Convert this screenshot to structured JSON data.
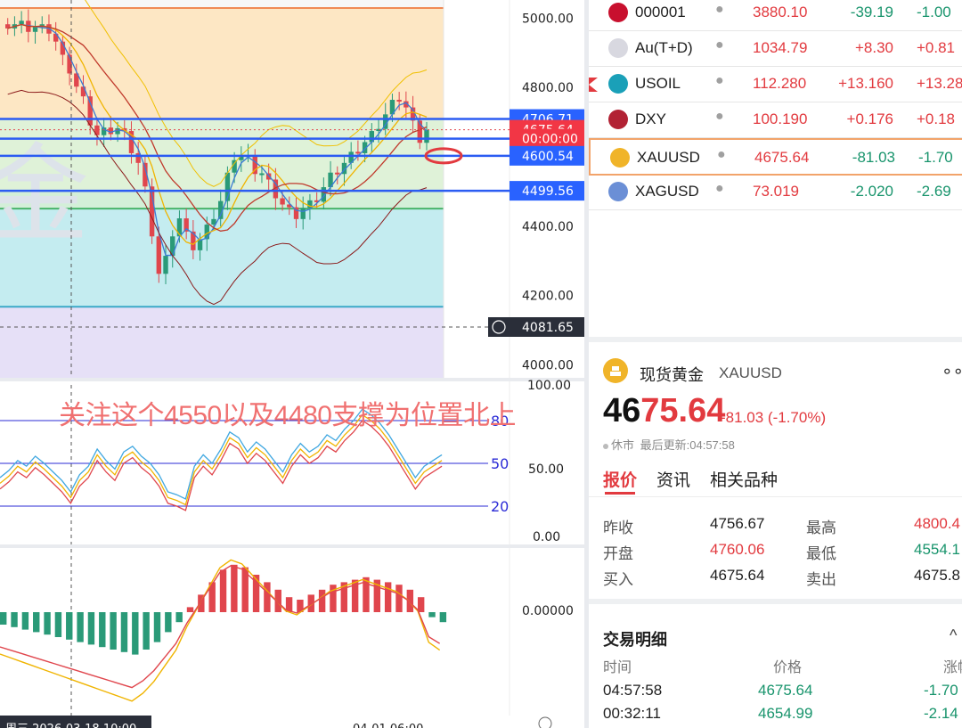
{
  "watchlist": [
    {
      "symbol": "000001",
      "price": "3880.10",
      "change": "-39.19",
      "pct": "-1.00",
      "dir": "down",
      "icon": "sse-logo-icon",
      "color": "#c8102e"
    },
    {
      "symbol": "Au(T+D)",
      "price": "1034.79",
      "change": "+8.30",
      "pct": "+0.81",
      "dir": "up",
      "icon": "letter-a-icon",
      "color": "#d8d8e0"
    },
    {
      "symbol": "USOIL",
      "price": "112.280",
      "change": "+13.160",
      "pct": "+13.28",
      "dir": "up",
      "icon": "oil-drop-icon",
      "color": "#1aa0b8"
    },
    {
      "symbol": "DXY",
      "price": "100.190",
      "change": "+0.176",
      "pct": "+0.18",
      "dir": "up",
      "icon": "us-flag-icon",
      "color": "#b22234"
    },
    {
      "symbol": "XAUUSD",
      "price": "4675.64",
      "change": "-81.03",
      "pct": "-1.70",
      "dir": "down",
      "icon": "gold-bars-icon",
      "color": "#f0b429"
    },
    {
      "symbol": "XAGUSD",
      "price": "73.019",
      "change": "-2.020",
      "pct": "-2.69",
      "dir": "down",
      "icon": "silver-bars-icon",
      "color": "#6b8fd6"
    }
  ],
  "detail": {
    "name": "现货黄金",
    "symbol": "XAUUSD",
    "price_black": "46",
    "price_red": "75.64",
    "change": "-81.03 (-1.70%)",
    "status": "休市",
    "updated": "最后更新:04:57:58",
    "tabs": [
      "报价",
      "资讯",
      "相关品种"
    ],
    "stats": [
      {
        "label": "昨收",
        "value": "4756.67",
        "label2": "最高",
        "value2": "4800.4"
      },
      {
        "label": "开盘",
        "value": "4760.06",
        "label2": "最低",
        "value2": "4554.1"
      },
      {
        "label": "买入",
        "value": "4675.64",
        "label2": "卖出",
        "value2": "4675.8"
      }
    ],
    "trades_title": "交易明细",
    "trade_headers": [
      "时间",
      "价格",
      "涨幅"
    ],
    "trades": [
      {
        "time": "04:57:58",
        "price": "4675.64",
        "pct": "-1.70"
      },
      {
        "time": "00:32:11",
        "price": "4654.99",
        "pct": "-2.14"
      }
    ],
    "more": "∘∘∘"
  },
  "chart": {
    "annotation": "关注这个4550以及4480支撑为位置北上",
    "price_labels": [
      {
        "text": "5000.00",
        "value": 5000
      },
      {
        "text": "4800.00",
        "value": 4800
      },
      {
        "text": "4400.00",
        "value": 4400
      },
      {
        "text": "4200.00",
        "value": 4200
      },
      {
        "text": "4000.00",
        "value": 4000
      }
    ],
    "level_tags": [
      {
        "text": "4706.71",
        "value": 4706.71,
        "bg": "#2962ff"
      },
      {
        "text": "4675.64",
        "value": 4675.64,
        "bg": "#f23645"
      },
      {
        "text": "00:00:00",
        "value": 4650,
        "bg": "#f23645"
      },
      {
        "text": "4600.54",
        "value": 4600.54,
        "bg": "#2962ff"
      },
      {
        "text": "4499.56",
        "value": 4499.56,
        "bg": "#2962ff"
      }
    ],
    "crosshair_label": "4081.65",
    "rsi_labels": [
      "100.00",
      "80",
      "50",
      "50.00",
      "20",
      "0.00"
    ],
    "macd_label": "0.00000",
    "bottom_axis": [
      "周三 2026-03-18 10:00",
      "04-01 06:00"
    ],
    "watermark": "金"
  },
  "chart_data": {
    "type": "candlestick",
    "ylim": [
      3960,
      5050
    ],
    "levels": [
      5027,
      4706.71,
      4600.54,
      4499.56,
      4448,
      4165
    ],
    "values": [
      4980,
      4980,
      4978,
      4970,
      4972,
      4968,
      4965,
      4930,
      4880,
      4850,
      4800,
      4760,
      4700,
      4660,
      4670,
      4675,
      4680,
      4660,
      4620,
      4580,
      4500,
      4380,
      4260,
      4300,
      4380,
      4420,
      4370,
      4340,
      4360,
      4390,
      4430,
      4470,
      4540,
      4600,
      4600,
      4590,
      4560,
      4550,
      4520,
      4490,
      4460,
      4440,
      4430,
      4450,
      4460,
      4480,
      4510,
      4540,
      4560,
      4580,
      4600,
      4620,
      4640,
      4660,
      4690,
      4720,
      4750,
      4770,
      4740,
      4690,
      4650,
      4675
    ],
    "rsi": [
      40,
      45,
      52,
      48,
      55,
      50,
      44,
      38,
      30,
      42,
      48,
      60,
      52,
      46,
      58,
      62,
      55,
      50,
      42,
      30,
      28,
      25,
      48,
      56,
      50,
      60,
      72,
      68,
      58,
      65,
      60,
      52,
      44,
      56,
      64,
      58,
      62,
      70,
      66,
      74,
      80,
      88,
      84,
      78,
      70,
      60,
      50,
      40,
      48,
      52,
      56
    ],
    "macd": [
      -10,
      -12,
      -14,
      -16,
      -18,
      -20,
      -22,
      -24,
      -26,
      -28,
      -30,
      -32,
      -34,
      -30,
      -24,
      -16,
      -8,
      4,
      14,
      24,
      34,
      38,
      36,
      30,
      24,
      18,
      12,
      10,
      14,
      18,
      22,
      24,
      26,
      28,
      26,
      24,
      22,
      18,
      12,
      -4,
      -8
    ]
  }
}
